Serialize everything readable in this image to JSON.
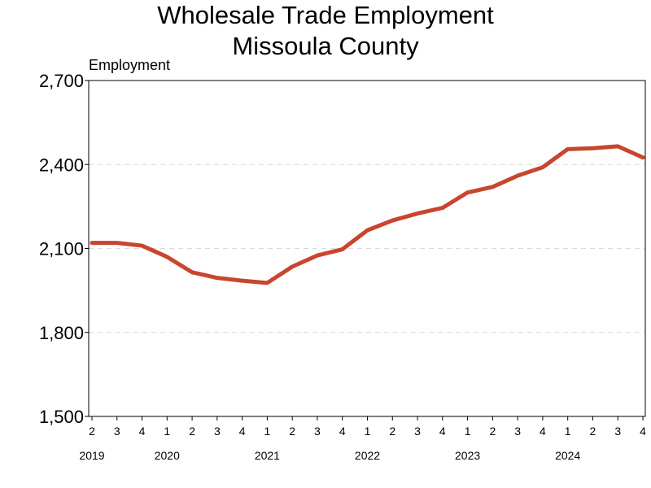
{
  "chart_data": {
    "type": "line",
    "title_line1": "Wholesale Trade Employment",
    "title_line2": "Missoula County",
    "ylabel": "Employment",
    "xlabel": "",
    "ylim": [
      1500,
      2700
    ],
    "yticks": [
      1500,
      1800,
      2100,
      2400,
      2700
    ],
    "ytick_labels": [
      "1,500",
      "1,800",
      "2,100",
      "2,400",
      "2,700"
    ],
    "grid": "horizontal dashed",
    "line_color": "#c8452f",
    "quarters": [
      "2",
      "3",
      "4",
      "1",
      "2",
      "3",
      "4",
      "1",
      "2",
      "3",
      "4",
      "1",
      "2",
      "3",
      "4",
      "1",
      "2",
      "3",
      "4",
      "1",
      "2",
      "3",
      "4"
    ],
    "years": [
      {
        "label": "2019",
        "at_index": 0
      },
      {
        "label": "2020",
        "at_index": 3
      },
      {
        "label": "2021",
        "at_index": 7
      },
      {
        "label": "2022",
        "at_index": 11
      },
      {
        "label": "2023",
        "at_index": 15
      },
      {
        "label": "2024",
        "at_index": 19
      }
    ],
    "values": [
      2120,
      2120,
      2110,
      2070,
      2015,
      1995,
      1985,
      1977,
      2035,
      2075,
      2097,
      2165,
      2200,
      2225,
      2245,
      2300,
      2320,
      2360,
      2390,
      2455,
      2458,
      2465,
      2425
    ]
  }
}
